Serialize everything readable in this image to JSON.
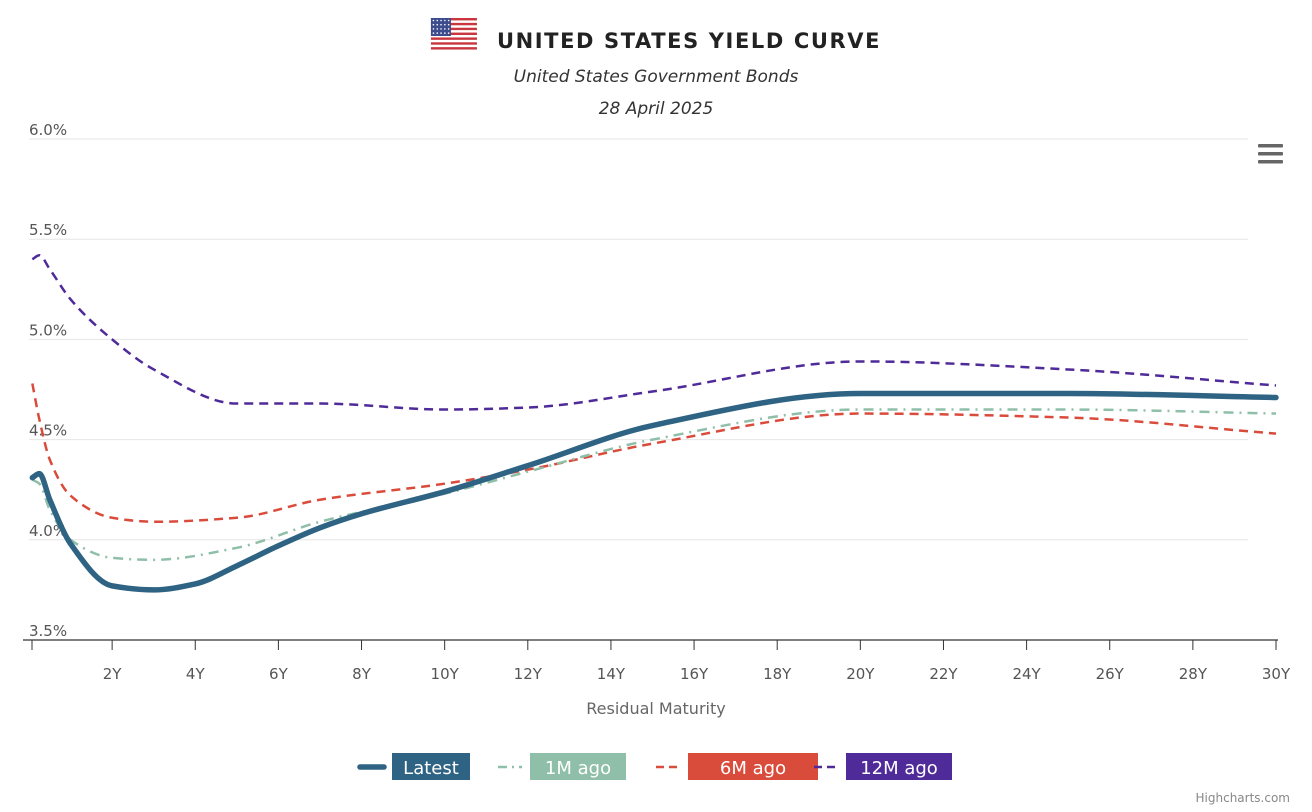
{
  "chart_data": {
    "type": "line",
    "title": "UNITED STATES YIELD CURVE",
    "subtitle": "United States Government Bonds",
    "date": "28 April 2025",
    "xlabel": "Residual Maturity",
    "ylabel": "",
    "x_unit": "years",
    "xlim": [
      0,
      30
    ],
    "ylim": [
      3.5,
      6.0
    ],
    "x_ticks": [
      2,
      4,
      6,
      8,
      10,
      12,
      14,
      16,
      18,
      20,
      22,
      24,
      26,
      28,
      30
    ],
    "x_tick_labels": [
      "2Y",
      "4Y",
      "6Y",
      "8Y",
      "10Y",
      "12Y",
      "14Y",
      "16Y",
      "18Y",
      "20Y",
      "22Y",
      "24Y",
      "26Y",
      "28Y",
      "30Y"
    ],
    "y_ticks": [
      3.5,
      4.0,
      4.5,
      5.0,
      5.5,
      6.0
    ],
    "y_tick_labels": [
      "3.5%",
      "4.0%",
      "4.5%",
      "5.0%",
      "5.5%",
      "6.0%"
    ],
    "grid": true,
    "legend_position": "bottom-center",
    "series": [
      {
        "name": "Latest",
        "color": "#2f6383",
        "dash": "solid",
        "x": [
          0.08,
          0.25,
          0.5,
          1,
          2,
          3,
          4,
          5,
          6,
          7,
          8,
          10,
          12,
          15,
          20,
          25,
          30
        ],
        "y": [
          4.31,
          4.33,
          4.2,
          3.98,
          3.77,
          3.75,
          3.78,
          3.87,
          3.97,
          4.06,
          4.13,
          4.24,
          4.37,
          4.57,
          4.73,
          4.73,
          4.71
        ]
      },
      {
        "name": "1M ago",
        "color": "#8fbfa8",
        "dash": "dashdot",
        "x": [
          0.08,
          0.25,
          0.5,
          1,
          2,
          3,
          5,
          7,
          10,
          12,
          15,
          20,
          25,
          30
        ],
        "y": [
          4.3,
          4.28,
          4.15,
          4.0,
          3.91,
          3.9,
          3.96,
          4.09,
          4.23,
          4.34,
          4.5,
          4.65,
          4.65,
          4.63
        ]
      },
      {
        "name": "6M ago",
        "color": "#d94b3b",
        "dash": "dashed",
        "x": [
          0.08,
          0.25,
          0.5,
          1,
          2,
          3,
          5,
          7,
          10,
          12,
          15,
          20,
          25,
          30
        ],
        "y": [
          4.78,
          4.6,
          4.4,
          4.22,
          4.11,
          4.09,
          4.11,
          4.2,
          4.28,
          4.35,
          4.48,
          4.63,
          4.61,
          4.53
        ]
      },
      {
        "name": "12M ago",
        "color": "#4f2a99",
        "dash": "dashed",
        "x": [
          0.08,
          0.25,
          0.5,
          1,
          2,
          3,
          5,
          7,
          10,
          12,
          15,
          20,
          25,
          30
        ],
        "y": [
          5.4,
          5.42,
          5.35,
          5.2,
          5.0,
          4.85,
          4.68,
          4.68,
          4.65,
          4.66,
          4.74,
          4.89,
          4.85,
          4.77
        ]
      }
    ]
  },
  "ui": {
    "menu_icon": "hamburger-menu-icon",
    "flag_icon": "us-flag-icon",
    "credits": "Highcharts.com"
  }
}
